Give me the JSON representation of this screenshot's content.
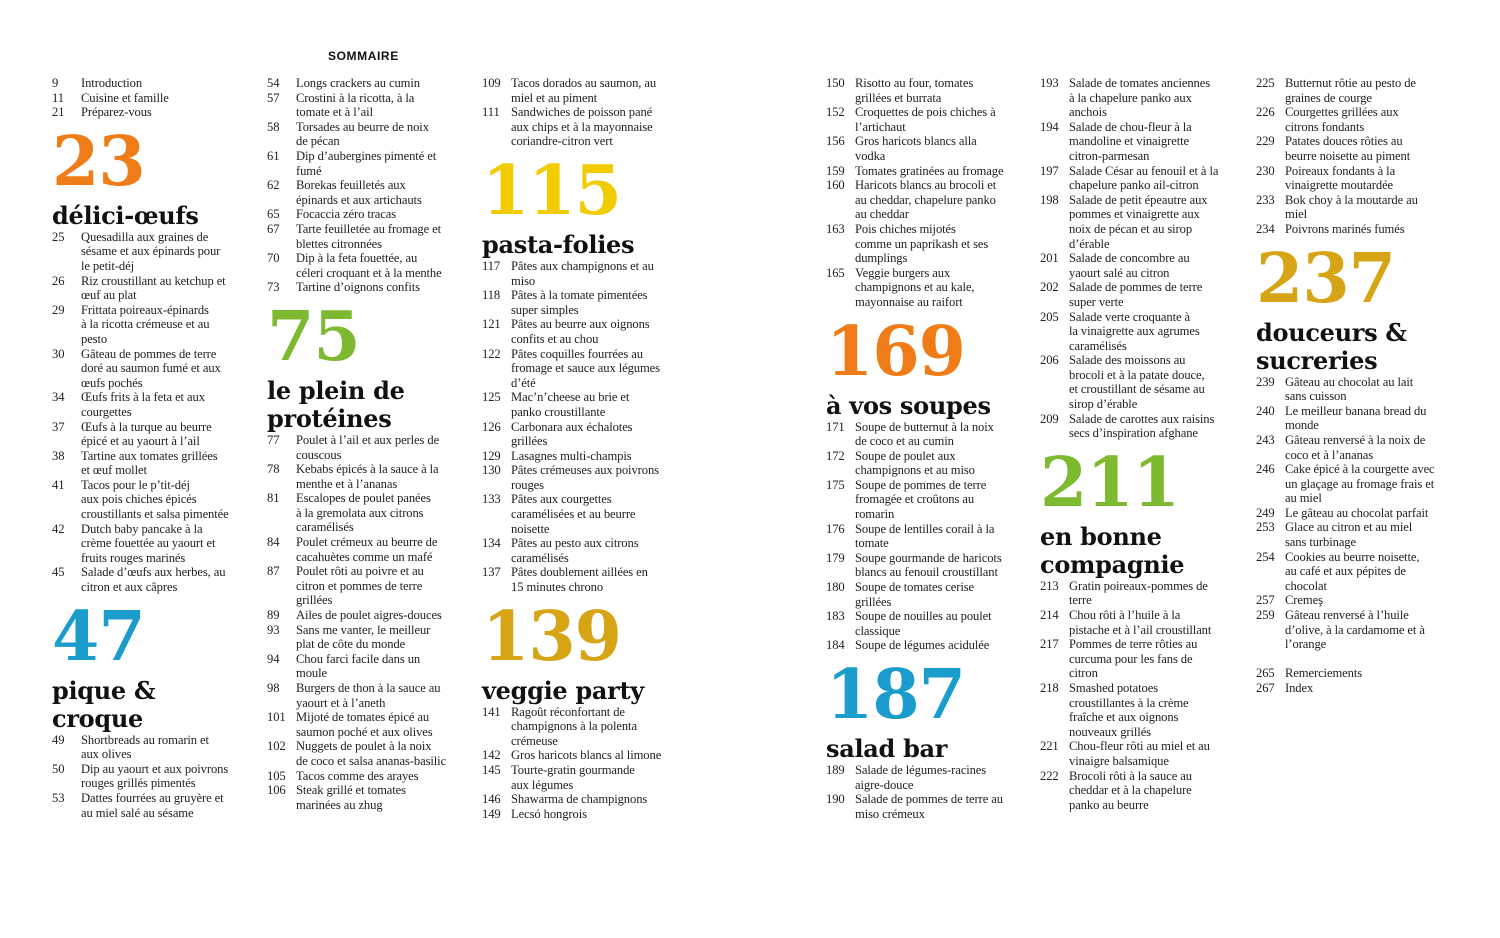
{
  "heading": "SOMMAIRE",
  "columns": [
    {
      "items": [
        {
          "type": "entry",
          "page": "9",
          "text": "Introduction"
        },
        {
          "type": "entry",
          "page": "11",
          "text": "Cuisine et famille"
        },
        {
          "type": "entry",
          "page": "21",
          "text": "Préparez-vous"
        },
        {
          "type": "section",
          "page": "23",
          "title": "délici-œufs",
          "color": "#f07c17"
        },
        {
          "type": "entry",
          "page": "25",
          "text": "Quesadilla aux graines de\nsésame et aux épinards pour\nle petit-déj"
        },
        {
          "type": "entry",
          "page": "26",
          "text": "Riz croustillant au ketchup et\nœuf au plat"
        },
        {
          "type": "entry",
          "page": "29",
          "text": "Frittata poireaux-épinards\nà la ricotta crémeuse et au\npesto"
        },
        {
          "type": "entry",
          "page": "30",
          "text": "Gâteau de pommes de terre\ndoré au saumon fumé et aux\nœufs pochés"
        },
        {
          "type": "entry",
          "page": "34",
          "text": "Œufs frits à la feta et aux\ncourgettes"
        },
        {
          "type": "entry",
          "page": "37",
          "text": "Œufs à la turque au beurre\népicé et au yaourt à l’ail"
        },
        {
          "type": "entry",
          "page": "38",
          "text": "Tartine aux tomates grillées\net œuf mollet"
        },
        {
          "type": "entry",
          "page": "41",
          "text": "Tacos pour le p’tit-déj\naux pois chiches épicés\ncroustillants et salsa pimentée"
        },
        {
          "type": "entry",
          "page": "42",
          "text": "Dutch baby pancake à la\ncrème fouettée au yaourt et\nfruits rouges marinés"
        },
        {
          "type": "entry",
          "page": "45",
          "text": "Salade d’œufs aux herbes, au\ncitron et aux câpres"
        },
        {
          "type": "section",
          "page": "47",
          "title": "pique &\ncroque",
          "color": "#1a9ccc"
        },
        {
          "type": "entry",
          "page": "49",
          "text": "Shortbreads au romarin et\naux olives"
        },
        {
          "type": "entry",
          "page": "50",
          "text": "Dip au yaourt et aux poivrons\nrouges grillés pimentés"
        },
        {
          "type": "entry",
          "page": "53",
          "text": "Dattes fourrées au gruyère et\nau miel salé au sésame"
        }
      ]
    },
    {
      "items": [
        {
          "type": "entry",
          "page": "54",
          "text": "Longs crackers au cumin"
        },
        {
          "type": "entry",
          "page": "57",
          "text": "Crostini à la ricotta, à la\ntomate et à l’ail"
        },
        {
          "type": "entry",
          "page": "58",
          "text": "Torsades au beurre de noix\nde pécan"
        },
        {
          "type": "entry",
          "page": "61",
          "text": "Dip d’aubergines pimenté et\nfumé"
        },
        {
          "type": "entry",
          "page": "62",
          "text": "Borekas feuilletés aux\népinards et aux artichauts"
        },
        {
          "type": "entry",
          "page": "65",
          "text": "Focaccia zéro tracas"
        },
        {
          "type": "entry",
          "page": "67",
          "text": "Tarte feuilletée au fromage et\nblettes citronnées"
        },
        {
          "type": "entry",
          "page": "70",
          "text": "Dip à la feta fouettée, au\ncéleri croquant et à la menthe"
        },
        {
          "type": "entry",
          "page": "73",
          "text": "Tartine d’oignons confits"
        },
        {
          "type": "section",
          "page": "75",
          "title": "le plein de\nprotéines",
          "color": "#7dba2f"
        },
        {
          "type": "entry",
          "page": "77",
          "text": "Poulet à l’ail et aux perles de\ncouscous"
        },
        {
          "type": "entry",
          "page": "78",
          "text": "Kebabs épicés à la sauce à la\nmenthe et à l’ananas"
        },
        {
          "type": "entry",
          "page": "81",
          "text": "Escalopes de poulet panées\nà la gremolata aux citrons\ncaramélisés"
        },
        {
          "type": "entry",
          "page": "84",
          "text": "Poulet crémeux au beurre de\ncacahuètes comme un mafé"
        },
        {
          "type": "entry",
          "page": "87",
          "text": "Poulet rôti au poivre et au\ncitron et pommes de terre\ngrillées"
        },
        {
          "type": "entry",
          "page": "89",
          "text": "Ailes de poulet aigres-douces"
        },
        {
          "type": "entry",
          "page": "93",
          "text": "Sans me vanter, le meilleur\nplat de côte du monde"
        },
        {
          "type": "entry",
          "page": "94",
          "text": "Chou farci facile dans un\nmoule"
        },
        {
          "type": "entry",
          "page": "98",
          "text": "Burgers de thon à la sauce au\nyaourt et à l’aneth"
        },
        {
          "type": "entry",
          "page": "101",
          "text": "Mijoté de tomates épicé au\nsaumon poché et aux olives"
        },
        {
          "type": "entry",
          "page": "102",
          "text": "Nuggets de poulet à la noix\nde coco et salsa ananas-basilic"
        },
        {
          "type": "entry",
          "page": "105",
          "text": "Tacos comme des arayes"
        },
        {
          "type": "entry",
          "page": "106",
          "text": "Steak grillé et tomates\nmarinées au zhug"
        }
      ]
    },
    {
      "items": [
        {
          "type": "entry",
          "page": "109",
          "text": "Tacos dorados au saumon, au\nmiel et au piment"
        },
        {
          "type": "entry",
          "page": "111",
          "text": "Sandwiches de poisson pané\naux chips et à la mayonnaise\ncoriandre-citron vert"
        },
        {
          "type": "section",
          "page": "115",
          "title": "pasta-folies",
          "color": "#f2cc00"
        },
        {
          "type": "entry",
          "page": "117",
          "text": "Pâtes aux champignons et au\nmiso"
        },
        {
          "type": "entry",
          "page": "118",
          "text": "Pâtes à la tomate pimentées\nsuper simples"
        },
        {
          "type": "entry",
          "page": "121",
          "text": "Pâtes au beurre aux oignons\nconfits et au chou"
        },
        {
          "type": "entry",
          "page": "122",
          "text": "Pâtes coquilles fourrées au\nfromage et sauce aux légumes\nd’été"
        },
        {
          "type": "entry",
          "page": "125",
          "text": "Mac’n’cheese au brie et\npanko croustillante"
        },
        {
          "type": "entry",
          "page": "126",
          "text": "Carbonara aux échalotes\ngrillées"
        },
        {
          "type": "entry",
          "page": "129",
          "text": "Lasagnes multi-champis"
        },
        {
          "type": "entry",
          "page": "130",
          "text": "Pâtes crémeuses aux poivrons\nrouges"
        },
        {
          "type": "entry",
          "page": "133",
          "text": "Pâtes aux courgettes\ncaramélisées et au beurre\nnoisette"
        },
        {
          "type": "entry",
          "page": "134",
          "text": "Pâtes au pesto aux citrons\ncaramélisés"
        },
        {
          "type": "entry",
          "page": "137",
          "text": "Pâtes doublement aillées en\n15 minutes chrono"
        },
        {
          "type": "section",
          "page": "139",
          "title": "veggie party",
          "color": "#d6a414"
        },
        {
          "type": "entry",
          "page": "141",
          "text": "Ragoût réconfortant de\nchampignons à la polenta\ncrémeuse"
        },
        {
          "type": "entry",
          "page": "142",
          "text": "Gros haricots blancs al limone"
        },
        {
          "type": "entry",
          "page": "145",
          "text": "Tourte-gratin gourmande\naux légumes"
        },
        {
          "type": "entry",
          "page": "146",
          "text": "Shawarma de champignons"
        },
        {
          "type": "entry",
          "page": "149",
          "text": "Lecsó hongrois"
        }
      ]
    },
    {
      "items": [
        {
          "type": "entry",
          "page": "150",
          "text": "Risotto au four, tomates\ngrillées et burrata"
        },
        {
          "type": "entry",
          "page": "152",
          "text": "Croquettes de pois chiches à\nl’artichaut"
        },
        {
          "type": "entry",
          "page": "156",
          "text": "Gros haricots blancs alla\nvodka"
        },
        {
          "type": "entry",
          "page": "159",
          "text": "Tomates gratinées au fromage"
        },
        {
          "type": "entry",
          "page": "160",
          "text": "Haricots blancs au brocoli et\nau cheddar, chapelure panko\nau cheddar"
        },
        {
          "type": "entry",
          "page": "163",
          "text": "Pois chiches mijotés\ncomme un paprikash et ses\ndumplings"
        },
        {
          "type": "entry",
          "page": "165",
          "text": "Veggie burgers aux\nchampignons et au kale,\nmayonnaise au raifort"
        },
        {
          "type": "section",
          "page": "169",
          "title": "à vos soupes",
          "color": "#f07c17"
        },
        {
          "type": "entry",
          "page": "171",
          "text": "Soupe de butternut à la noix\nde coco et au cumin"
        },
        {
          "type": "entry",
          "page": "172",
          "text": "Soupe de poulet aux\nchampignons et au miso"
        },
        {
          "type": "entry",
          "page": "175",
          "text": "Soupe de pommes de terre\nfromagée et croûtons au\nromarin"
        },
        {
          "type": "entry",
          "page": "176",
          "text": "Soupe de lentilles corail à la\ntomate"
        },
        {
          "type": "entry",
          "page": "179",
          "text": "Soupe gourmande de haricots\nblancs au fenouil croustillant"
        },
        {
          "type": "entry",
          "page": "180",
          "text": "Soupe de tomates cerise\ngrillées"
        },
        {
          "type": "entry",
          "page": "183",
          "text": "Soupe de nouilles au poulet\nclassique"
        },
        {
          "type": "entry",
          "page": "184",
          "text": "Soupe de légumes acidulée"
        },
        {
          "type": "section",
          "page": "187",
          "title": "salad bar",
          "color": "#1a9ccc"
        },
        {
          "type": "entry",
          "page": "189",
          "text": "Salade de légumes-racines\naigre-douce"
        },
        {
          "type": "entry",
          "page": "190",
          "text": "Salade de pommes de terre au\nmiso crémeux"
        }
      ]
    },
    {
      "items": [
        {
          "type": "entry",
          "page": "193",
          "text": "Salade de tomates anciennes\nà la chapelure panko aux\nanchois"
        },
        {
          "type": "entry",
          "page": "194",
          "text": "Salade de chou-fleur à la\nmandoline et vinaigrette\ncitron-parmesan"
        },
        {
          "type": "entry",
          "page": "197",
          "text": "Salade César au fenouil et à la\nchapelure panko ail-citron"
        },
        {
          "type": "entry",
          "page": "198",
          "text": "Salade de petit épeautre aux\npommes et vinaigrette aux\nnoix de pécan et au sirop\nd’érable"
        },
        {
          "type": "entry",
          "page": "201",
          "text": "Salade de concombre au\nyaourt salé au citron"
        },
        {
          "type": "entry",
          "page": "202",
          "text": "Salade de pommes de terre\nsuper verte"
        },
        {
          "type": "entry",
          "page": "205",
          "text": "Salade verte croquante à\nla vinaigrette aux agrumes\ncaramélisés"
        },
        {
          "type": "entry",
          "page": "206",
          "text": "Salade des moissons au\nbrocoli et à la patate douce,\net croustillant de sésame au\nsirop d’érable"
        },
        {
          "type": "entry",
          "page": "209",
          "text": "Salade de carottes aux raisins\nsecs d’inspiration afghane"
        },
        {
          "type": "section",
          "page": "211",
          "title": "en bonne\ncompagnie",
          "color": "#7dba2f"
        },
        {
          "type": "entry",
          "page": "213",
          "text": "Gratin poireaux-pommes de\nterre"
        },
        {
          "type": "entry",
          "page": "214",
          "text": "Chou rôti à l’huile à la\npistache et à l’ail croustillant"
        },
        {
          "type": "entry",
          "page": "217",
          "text": "Pommes de terre rôties au\ncurcuma pour les fans de\ncitron"
        },
        {
          "type": "entry",
          "page": "218",
          "text": "Smashed potatoes\ncroustillantes à la crème\nfraîche et aux oignons\nnouveaux grillés"
        },
        {
          "type": "entry",
          "page": "221",
          "text": "Chou-fleur rôti au miel et au\nvinaigre balsamique"
        },
        {
          "type": "entry",
          "page": "222",
          "text": "Brocoli rôti à la sauce au\ncheddar et à la chapelure\npanko au beurre"
        }
      ]
    },
    {
      "items": [
        {
          "type": "entry",
          "page": "225",
          "text": "Butternut rôtie au pesto de\ngraines de courge"
        },
        {
          "type": "entry",
          "page": "226",
          "text": "Courgettes grillées aux\ncitrons fondants"
        },
        {
          "type": "entry",
          "page": "229",
          "text": "Patates douces rôties au\nbeurre noisette au piment"
        },
        {
          "type": "entry",
          "page": "230",
          "text": "Poireaux fondants à la\nvinaigrette moutardée"
        },
        {
          "type": "entry",
          "page": "233",
          "text": "Bok choy à la moutarde au\nmiel"
        },
        {
          "type": "entry",
          "page": "234",
          "text": "Poivrons marinés fumés"
        },
        {
          "type": "section",
          "page": "237",
          "title": "douceurs &\nsucreries",
          "color": "#d6a414"
        },
        {
          "type": "entry",
          "page": "239",
          "text": "Gâteau au chocolat au lait\nsans cuisson"
        },
        {
          "type": "entry",
          "page": "240",
          "text": "Le meilleur banana bread du\nmonde"
        },
        {
          "type": "entry",
          "page": "243",
          "text": "Gâteau renversé à la noix de\ncoco et à l’ananas"
        },
        {
          "type": "entry",
          "page": "246",
          "text": "Cake épicé à la courgette avec\nun glaçage au fromage frais et\nau miel"
        },
        {
          "type": "entry",
          "page": "249",
          "text": "Le gâteau au chocolat parfait"
        },
        {
          "type": "entry",
          "page": "253",
          "text": "Glace au citron et au miel\nsans turbinage"
        },
        {
          "type": "entry",
          "page": "254",
          "text": "Cookies au beurre noisette,\nau café et aux pépites de\nchocolat"
        },
        {
          "type": "entry",
          "page": "257",
          "text": "Cremeş"
        },
        {
          "type": "entry",
          "page": "259",
          "text": "Gâteau renversé à l’huile\nd’olive, à la cardamome et à\nl’orange"
        },
        {
          "type": "entry",
          "page": "265",
          "text": "Remerciements"
        },
        {
          "type": "entry",
          "page": "267",
          "text": "Index"
        }
      ]
    }
  ]
}
